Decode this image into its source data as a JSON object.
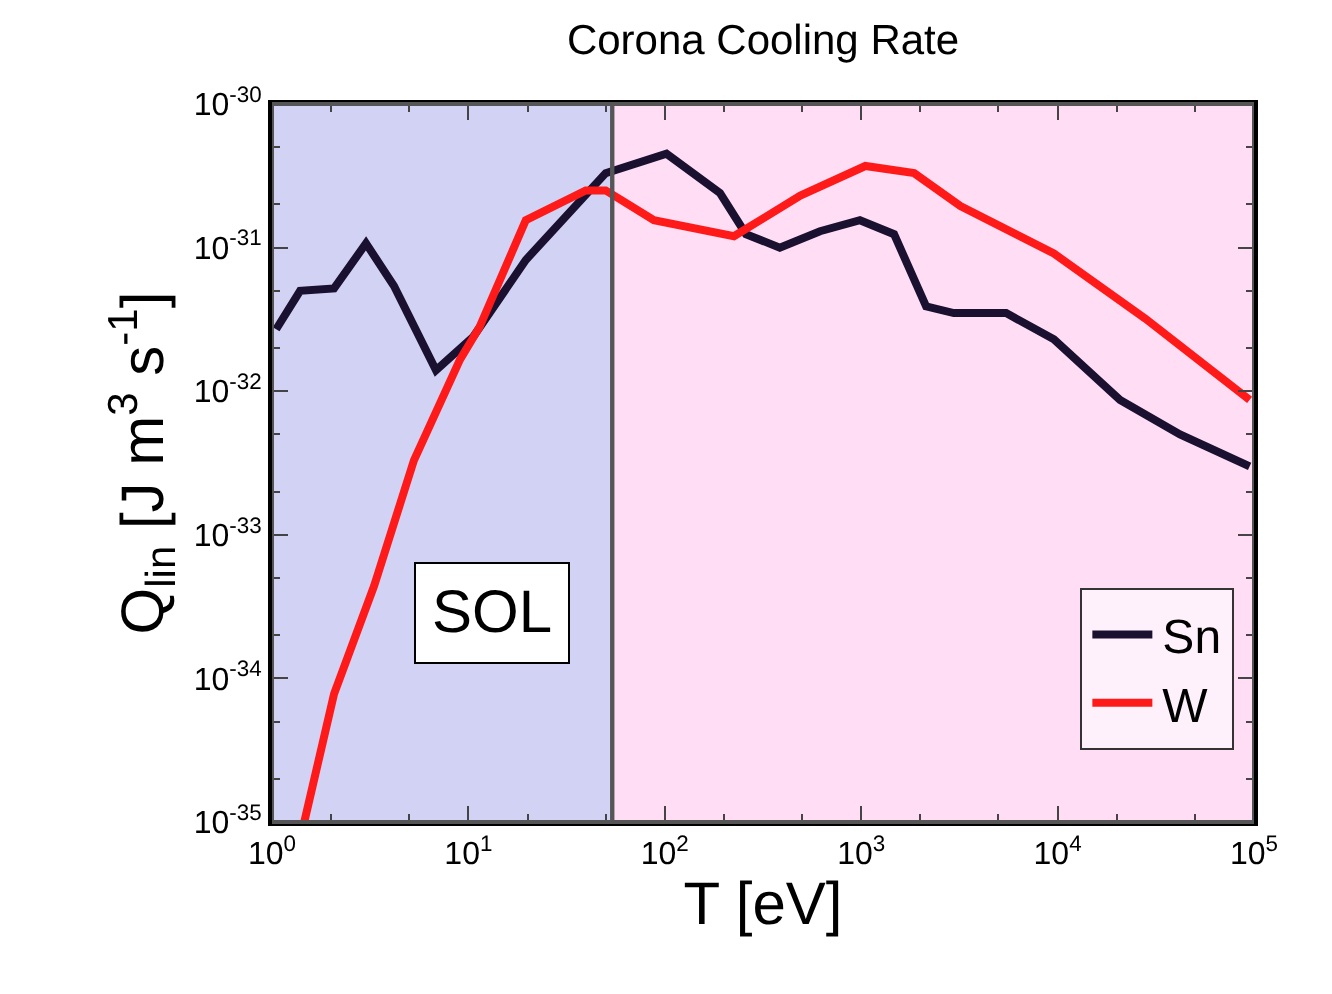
{
  "chart_data": {
    "type": "line",
    "title": "Corona Cooling Rate",
    "xlabel": "T [eV]",
    "ylabel": "Q$_{lin}$ [J m$^{3}$ s$^{-1}$]",
    "log": "xy",
    "xlim": [
      1,
      100000
    ],
    "ylim": [
      1e-35,
      1e-30
    ],
    "xticks": [
      {
        "value": 1,
        "label": "10$^{0}$"
      },
      {
        "value": 10,
        "label": "10$^{1}$"
      },
      {
        "value": 100,
        "label": "10$^{2}$"
      },
      {
        "value": 1000,
        "label": "10$^{3}$"
      },
      {
        "value": 10000,
        "label": "10$^{4}$"
      },
      {
        "value": 100000,
        "label": "10$^{5}$"
      }
    ],
    "yticks": [
      {
        "value": 1e-35,
        "label": "10$^{-35}$"
      },
      {
        "value": 1e-34,
        "label": "10$^{-34}$"
      },
      {
        "value": 1e-33,
        "label": "10$^{-33}$"
      },
      {
        "value": 1e-32,
        "label": "10$^{-32}$"
      },
      {
        "value": 1e-31,
        "label": "10$^{-31}$"
      },
      {
        "value": 1e-30,
        "label": "10$^{-30}$"
      }
    ],
    "grid": false,
    "legend": "bottom right",
    "marker": "none",
    "line_style": "solid",
    "series": [
      {
        "name": "Sn",
        "color": "#1a1030",
        "x": [
          1.05,
          1.39,
          2.07,
          3.01,
          4.18,
          6.84,
          10.6,
          19.6,
          50,
          102,
          191,
          259,
          385,
          617,
          985,
          1470,
          2140,
          2960,
          5470,
          9570,
          20800,
          42000,
          95000
        ],
        "values": [
          2.7e-32,
          5e-32,
          5.2e-32,
          1.07e-31,
          5.4e-32,
          1.4e-32,
          2.4e-32,
          8.2e-32,
          3.3e-31,
          4.5e-31,
          2.4e-31,
          1.24e-31,
          1e-31,
          1.3e-31,
          1.55e-31,
          1.24e-31,
          3.9e-32,
          3.5e-32,
          3.5e-32,
          2.3e-32,
          8.7e-33,
          5e-33,
          3e-33
        ]
      },
      {
        "name": "W",
        "color": "#ff1a1a",
        "x": [
          1.46,
          2.07,
          3.31,
          5.28,
          9.06,
          11.4,
          19.6,
          39.6,
          50,
          88,
          225,
          490,
          1050,
          1860,
          3200,
          9570,
          28000,
          95000
        ],
        "values": [
          1e-35,
          7.8e-35,
          4.4e-34,
          3.3e-33,
          1.66e-32,
          2.8e-32,
          1.55e-31,
          2.5e-31,
          2.5e-31,
          1.55e-31,
          1.2e-31,
          2.3e-31,
          3.7e-31,
          3.3e-31,
          1.95e-31,
          9.1e-32,
          3.2e-32,
          8.7e-33
        ]
      }
    ],
    "bands": [
      {
        "axis": "x",
        "from": 1,
        "to": 54,
        "label": "SOL",
        "color": "#3333cc"
      },
      {
        "axis": "x",
        "from": 54,
        "to": 100000,
        "color": "#ff66cc"
      }
    ]
  }
}
